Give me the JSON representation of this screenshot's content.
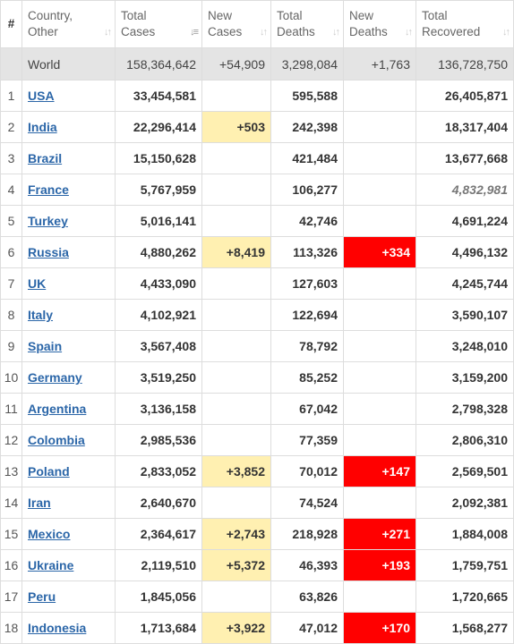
{
  "columns": {
    "index": "#",
    "country": [
      "Country,",
      "Other"
    ],
    "total_cases": [
      "Total",
      "Cases"
    ],
    "new_cases": [
      "New",
      "Cases"
    ],
    "total_deaths": [
      "Total",
      "Deaths"
    ],
    "new_deaths": [
      "New",
      "Deaths"
    ],
    "total_recovered": [
      "Total",
      "Recovered"
    ]
  },
  "world": {
    "label": "World",
    "total_cases": "158,364,642",
    "new_cases": "+54,909",
    "total_deaths": "3,298,084",
    "new_deaths": "+1,763",
    "total_recovered": "136,728,750"
  },
  "rows": [
    {
      "index": "1",
      "country": "USA",
      "total_cases": "33,454,581",
      "new_cases": "",
      "total_deaths": "595,588",
      "new_deaths": "",
      "total_recovered": "26,405,871"
    },
    {
      "index": "2",
      "country": "India",
      "total_cases": "22,296,414",
      "new_cases": "+503",
      "total_deaths": "242,398",
      "new_deaths": "",
      "total_recovered": "18,317,404"
    },
    {
      "index": "3",
      "country": "Brazil",
      "total_cases": "15,150,628",
      "new_cases": "",
      "total_deaths": "421,484",
      "new_deaths": "",
      "total_recovered": "13,677,668"
    },
    {
      "index": "4",
      "country": "France",
      "total_cases": "5,767,959",
      "new_cases": "",
      "total_deaths": "106,277",
      "new_deaths": "",
      "total_recovered": "4,832,981",
      "recovered_estimated": true
    },
    {
      "index": "5",
      "country": "Turkey",
      "total_cases": "5,016,141",
      "new_cases": "",
      "total_deaths": "42,746",
      "new_deaths": "",
      "total_recovered": "4,691,224"
    },
    {
      "index": "6",
      "country": "Russia",
      "total_cases": "4,880,262",
      "new_cases": "+8,419",
      "total_deaths": "113,326",
      "new_deaths": "+334",
      "total_recovered": "4,496,132"
    },
    {
      "index": "7",
      "country": "UK",
      "total_cases": "4,433,090",
      "new_cases": "",
      "total_deaths": "127,603",
      "new_deaths": "",
      "total_recovered": "4,245,744"
    },
    {
      "index": "8",
      "country": "Italy",
      "total_cases": "4,102,921",
      "new_cases": "",
      "total_deaths": "122,694",
      "new_deaths": "",
      "total_recovered": "3,590,107"
    },
    {
      "index": "9",
      "country": "Spain",
      "total_cases": "3,567,408",
      "new_cases": "",
      "total_deaths": "78,792",
      "new_deaths": "",
      "total_recovered": "3,248,010"
    },
    {
      "index": "10",
      "country": "Germany",
      "total_cases": "3,519,250",
      "new_cases": "",
      "total_deaths": "85,252",
      "new_deaths": "",
      "total_recovered": "3,159,200"
    },
    {
      "index": "11",
      "country": "Argentina",
      "total_cases": "3,136,158",
      "new_cases": "",
      "total_deaths": "67,042",
      "new_deaths": "",
      "total_recovered": "2,798,328"
    },
    {
      "index": "12",
      "country": "Colombia",
      "total_cases": "2,985,536",
      "new_cases": "",
      "total_deaths": "77,359",
      "new_deaths": "",
      "total_recovered": "2,806,310"
    },
    {
      "index": "13",
      "country": "Poland",
      "total_cases": "2,833,052",
      "new_cases": "+3,852",
      "total_deaths": "70,012",
      "new_deaths": "+147",
      "total_recovered": "2,569,501"
    },
    {
      "index": "14",
      "country": "Iran",
      "total_cases": "2,640,670",
      "new_cases": "",
      "total_deaths": "74,524",
      "new_deaths": "",
      "total_recovered": "2,092,381"
    },
    {
      "index": "15",
      "country": "Mexico",
      "total_cases": "2,364,617",
      "new_cases": "+2,743",
      "total_deaths": "218,928",
      "new_deaths": "+271",
      "total_recovered": "1,884,008"
    },
    {
      "index": "16",
      "country": "Ukraine",
      "total_cases": "2,119,510",
      "new_cases": "+5,372",
      "total_deaths": "46,393",
      "new_deaths": "+193",
      "total_recovered": "1,759,751"
    },
    {
      "index": "17",
      "country": "Peru",
      "total_cases": "1,845,056",
      "new_cases": "",
      "total_deaths": "63,826",
      "new_deaths": "",
      "total_recovered": "1,720,665"
    },
    {
      "index": "18",
      "country": "Indonesia",
      "total_cases": "1,713,684",
      "new_cases": "+3,922",
      "total_deaths": "47,012",
      "new_deaths": "+170",
      "total_recovered": "1,568,277"
    }
  ],
  "colors": {
    "new_cases_highlight": "#fff0b1",
    "new_deaths_highlight": "#ff0000",
    "world_row_bg": "#e4e4e4",
    "country_link": "#2b66a8"
  },
  "icons": {
    "sort": "sort-arrows-icon",
    "sort_active": "sort-desc-active-icon"
  }
}
